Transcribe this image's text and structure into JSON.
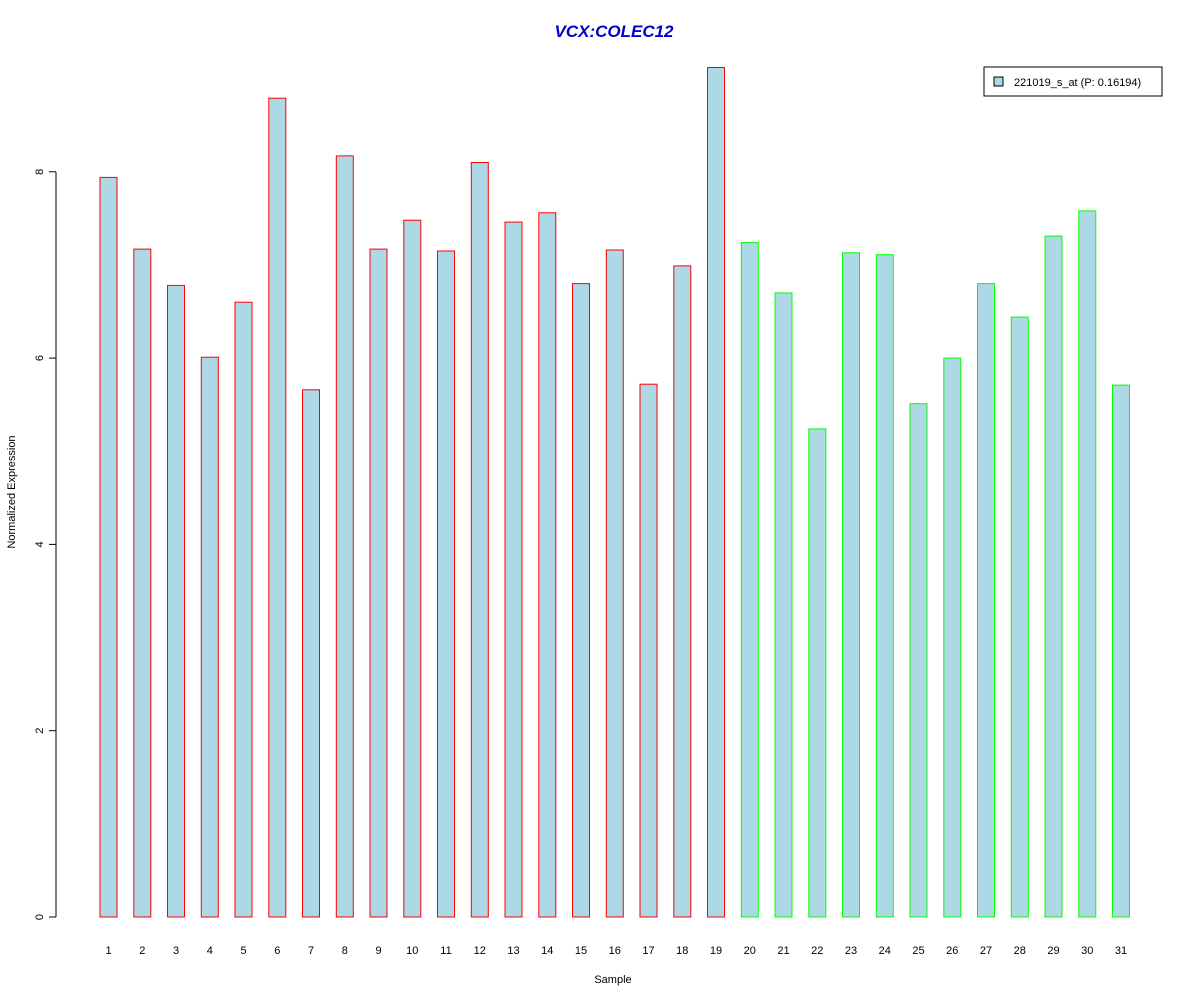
{
  "chart_data": {
    "type": "bar",
    "title": "VCX:COLEC12",
    "xlabel": "Sample",
    "ylabel": "Normalized Expression",
    "ylim": [
      0,
      9.2
    ],
    "yticks": [
      0,
      2,
      4,
      6,
      8
    ],
    "grid": false,
    "legend_position": "top-right",
    "categories": [
      "1",
      "2",
      "3",
      "4",
      "5",
      "6",
      "7",
      "8",
      "9",
      "10",
      "11",
      "12",
      "13",
      "14",
      "15",
      "16",
      "17",
      "18",
      "19",
      "20",
      "21",
      "22",
      "23",
      "24",
      "25",
      "26",
      "27",
      "28",
      "29",
      "30",
      "31"
    ],
    "series": [
      {
        "name": "221019_s_at (P: 0.16194)",
        "values": [
          7.94,
          7.17,
          6.78,
          6.01,
          6.6,
          8.79,
          5.66,
          8.17,
          7.17,
          7.48,
          7.15,
          8.1,
          7.46,
          7.56,
          6.8,
          7.16,
          5.72,
          6.99,
          9.12,
          7.24,
          6.7,
          5.24,
          7.13,
          7.11,
          5.51,
          6.0,
          6.8,
          6.44,
          7.31,
          7.58,
          5.71
        ],
        "fill_color": "#add8e6",
        "border_colors_by_group": {
          "group1": "#ff0000",
          "group2": "#00ff00"
        },
        "group1_count": 19
      }
    ],
    "title_color": "#0000cc"
  }
}
